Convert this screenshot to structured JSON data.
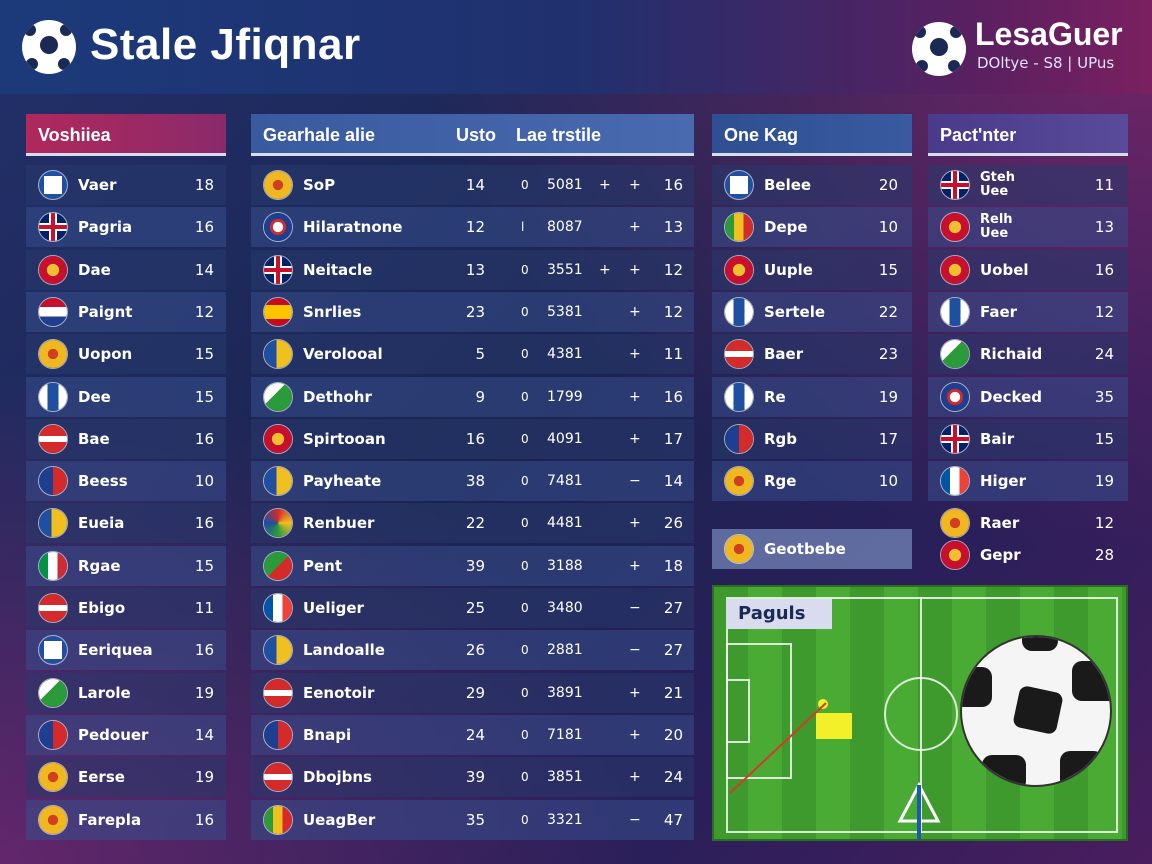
{
  "header": {
    "title": "Stale Jfiqnar",
    "brand": "LesaGuer",
    "brand_sub": "DOltye - S8 | UPus"
  },
  "colors": {
    "accent_magenta": "#b0285c",
    "panel_blue": "#3a5aa0",
    "field_green": "#4aab34"
  },
  "col1": {
    "header": "Voshiiea",
    "rows": [
      {
        "name": "Vaer",
        "value": "18",
        "flag": "blue-circle"
      },
      {
        "name": "Pagria",
        "value": "16",
        "flag": "uk"
      },
      {
        "name": "Dae",
        "value": "14",
        "flag": "crest-red"
      },
      {
        "name": "Paignt",
        "value": "12",
        "flag": "red-white-blue"
      },
      {
        "name": "Uopon",
        "value": "15",
        "flag": "crest-yellow"
      },
      {
        "name": "Dee",
        "value": "15",
        "flag": "blue-white"
      },
      {
        "name": "Bae",
        "value": "16",
        "flag": "red-white"
      },
      {
        "name": "Beess",
        "value": "10",
        "flag": "blue-red"
      },
      {
        "name": "Eueia",
        "value": "16",
        "flag": "blue-yellow"
      },
      {
        "name": "Rgae",
        "value": "15",
        "flag": "italy"
      },
      {
        "name": "Ebigo",
        "value": "11",
        "flag": "red-white"
      },
      {
        "name": "Eeriquea",
        "value": "16",
        "flag": "blue-circle"
      },
      {
        "name": "Larole",
        "value": "19",
        "flag": "green-white"
      },
      {
        "name": "Pedouer",
        "value": "14",
        "flag": "blue-red"
      },
      {
        "name": "Eerse",
        "value": "19",
        "flag": "crest-yellow"
      },
      {
        "name": "Farepla",
        "value": "16",
        "flag": "crest-yellow"
      }
    ]
  },
  "col2": {
    "header": "Gearhale alie",
    "header_mid": "Usto",
    "header_right": "Lae trstile",
    "rows": [
      {
        "name": "SoP",
        "a": "14",
        "b": "0",
        "c": "5081",
        "s": "+",
        "d": "+",
        "e": "16",
        "flag": "crest-yellow"
      },
      {
        "name": "Hilaratnone",
        "a": "12",
        "b": "l",
        "c": "8087",
        "s": "",
        "d": "+",
        "e": "13",
        "flag": "crest-blue"
      },
      {
        "name": "Neitacle",
        "a": "13",
        "b": "0",
        "c": "3551",
        "s": "+",
        "d": "+",
        "e": "12",
        "flag": "uk"
      },
      {
        "name": "Snrlies",
        "a": "23",
        "b": "0",
        "c": "5381",
        "s": "",
        "d": "+",
        "e": "12",
        "flag": "spain"
      },
      {
        "name": "Verolooal",
        "a": "5",
        "b": "0",
        "c": "4381",
        "s": "",
        "d": "+",
        "e": "11",
        "flag": "blue-yellow"
      },
      {
        "name": "Dethohr",
        "a": "9",
        "b": "0",
        "c": "1799",
        "s": "",
        "d": "+",
        "e": "16",
        "flag": "green-white"
      },
      {
        "name": "Spirtooan",
        "a": "16",
        "b": "0",
        "c": "4091",
        "s": "",
        "d": "+",
        "e": "17",
        "flag": "crest-red"
      },
      {
        "name": "Payheate",
        "a": "38",
        "b": "0",
        "c": "7481",
        "s": "",
        "d": "−",
        "e": "14",
        "flag": "blue-yellow"
      },
      {
        "name": "Renbuer",
        "a": "22",
        "b": "0",
        "c": "4481",
        "s": "",
        "d": "+",
        "e": "26",
        "flag": "rainbow"
      },
      {
        "name": "Pent",
        "a": "39",
        "b": "0",
        "c": "3188",
        "s": "",
        "d": "+",
        "e": "18",
        "flag": "green-red"
      },
      {
        "name": "Ueliger",
        "a": "25",
        "b": "0",
        "c": "3480",
        "s": "",
        "d": "−",
        "e": "27",
        "flag": "france"
      },
      {
        "name": "Landoalle",
        "a": "26",
        "b": "0",
        "c": "2881",
        "s": "",
        "d": "−",
        "e": "27",
        "flag": "blue-yellow"
      },
      {
        "name": "Eenotoir",
        "a": "29",
        "b": "0",
        "c": "3891",
        "s": "",
        "d": "+",
        "e": "21",
        "flag": "red-white"
      },
      {
        "name": "Bnapi",
        "a": "24",
        "b": "0",
        "c": "7181",
        "s": "",
        "d": "+",
        "e": "20",
        "flag": "blue-red"
      },
      {
        "name": "Dbojbns",
        "a": "39",
        "b": "0",
        "c": "3851",
        "s": "",
        "d": "+",
        "e": "24",
        "flag": "red-white"
      },
      {
        "name": "UeagBer",
        "a": "35",
        "b": "0",
        "c": "3321",
        "s": "",
        "d": "−",
        "e": "47",
        "flag": "green-yellow"
      }
    ]
  },
  "col3": {
    "header": "One Kag",
    "rows": [
      {
        "name": "Belee",
        "value": "20",
        "flag": "blue-circle"
      },
      {
        "name": "Depe",
        "value": "10",
        "flag": "green-yellow"
      },
      {
        "name": "Uuple",
        "value": "15",
        "flag": "crest-red"
      },
      {
        "name": "Sertele",
        "value": "22",
        "flag": "blue-white"
      },
      {
        "name": "Baer",
        "value": "23",
        "flag": "red-white"
      },
      {
        "name": "Re",
        "value": "19",
        "flag": "blue-white"
      },
      {
        "name": "Rgb",
        "value": "17",
        "flag": "blue-red"
      },
      {
        "name": "Rge",
        "value": "10",
        "flag": "crest-yellow"
      }
    ],
    "extra": {
      "name": "Geotbebe",
      "flag": "crest-yellow"
    }
  },
  "col4": {
    "header": "Pact'nter",
    "rows": [
      {
        "name": "Gteh",
        "name2": "Uee",
        "value": "11",
        "flag": "uk"
      },
      {
        "name": "Relh",
        "name2": "Uee",
        "value": "13",
        "flag": "crest-red"
      },
      {
        "name": "Uobel",
        "value": "16",
        "flag": "crest-red"
      },
      {
        "name": "Faer",
        "value": "12",
        "flag": "blue-white"
      },
      {
        "name": "Richaid",
        "value": "24",
        "flag": "green-white"
      },
      {
        "name": "Decked",
        "value": "35",
        "flag": "crest-blue"
      },
      {
        "name": "Bair",
        "value": "15",
        "flag": "uk"
      },
      {
        "name": "Higer",
        "value": "19",
        "flag": "france"
      },
      {
        "name": "Raer",
        "value": "12",
        "flag": "crest-yellow"
      },
      {
        "name": "Gepr",
        "value": "28",
        "flag": "crest-red"
      }
    ]
  },
  "field": {
    "label": "Paguls"
  }
}
